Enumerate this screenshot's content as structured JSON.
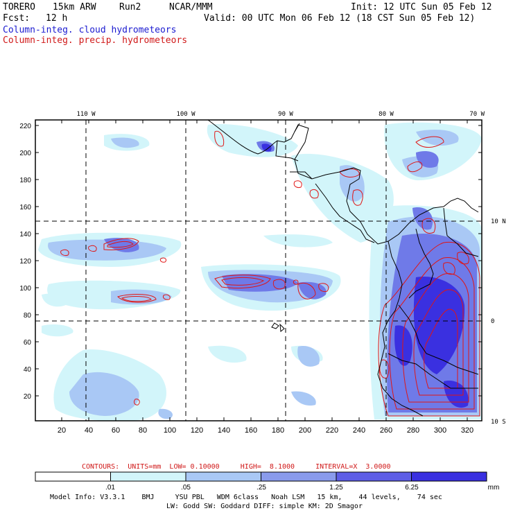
{
  "header": {
    "model": "TORERO",
    "resolution": "15km ARW",
    "run": "Run2",
    "org": "NCAR/MMM",
    "init": "Init: 12 UTC Sun 05 Feb 12",
    "fcst_label": "Fcst:",
    "fcst_value": "12 h",
    "valid": "Valid: 00 UTC Mon 06 Feb 12 (18 CST Sun 05 Feb 12)",
    "field1": "Column-integ. cloud hydrometeors",
    "field2": "Column-integ. precip. hydrometeors"
  },
  "map": {
    "lon_labels": [
      "110 W",
      "100 W",
      "90 W",
      "80 W",
      "70 W"
    ],
    "lat_labels": [
      "10 N",
      "0",
      "10 S"
    ],
    "y_ticks": [
      "220",
      "200",
      "180",
      "160",
      "140",
      "120",
      "100",
      "80",
      "60",
      "40",
      "20"
    ],
    "x_ticks": [
      "20",
      "40",
      "60",
      "80",
      "100",
      "120",
      "140",
      "160",
      "180",
      "200",
      "220",
      "240",
      "260",
      "280",
      "300",
      "320"
    ]
  },
  "contours": {
    "label": "CONTOURS:  UNITS=mm  LOW= 0.10000     HIGH=  8.1000     INTERVAL=X  3.0000"
  },
  "colorbar": {
    "labels": [
      ".01",
      ".05",
      ".25",
      "1.25",
      "6.25"
    ],
    "unit": "mm",
    "colors": [
      "#ffffff",
      "#d2f5fa",
      "#a9c8f5",
      "#8a9bec",
      "#5e5ee6",
      "#3a30e0"
    ]
  },
  "footer": {
    "line1": "Model Info: V3.3.1    BMJ     YSU PBL   WDM 6class   Noah LSM   15 km,    44 levels,    74 sec",
    "line2": "LW: Godd SW: Goddard DIFF: simple KM: 2D Smagor"
  }
}
